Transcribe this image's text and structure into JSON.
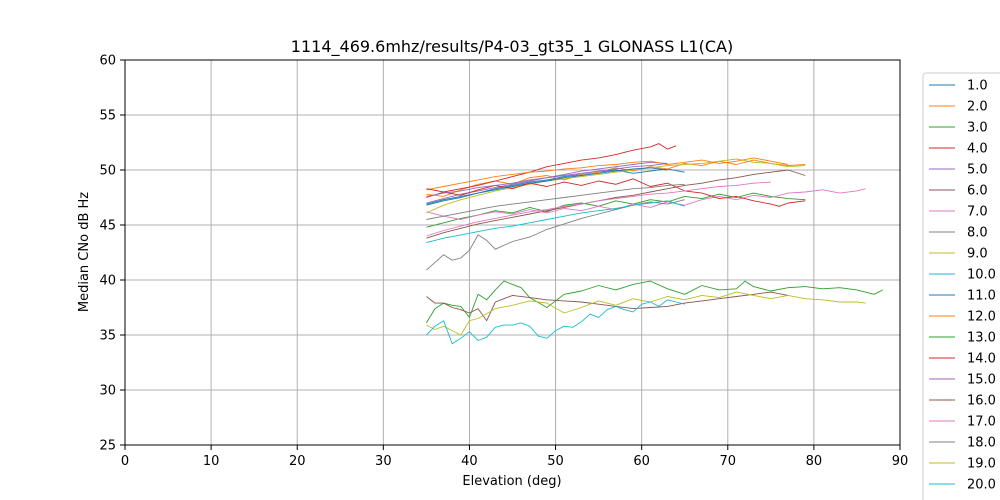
{
  "chart_data": {
    "type": "line",
    "title": "1114_469.6mhz/results/P4-03_gt35_1 GLONASS L1(CA)",
    "xlabel": "Elevation (deg)",
    "ylabel": "Median CNo dB Hz",
    "xlim": [
      0,
      90
    ],
    "ylim": [
      25,
      60
    ],
    "xticks": [
      0,
      10,
      20,
      30,
      40,
      50,
      60,
      70,
      80,
      90
    ],
    "yticks": [
      25,
      30,
      35,
      40,
      45,
      50,
      55,
      60
    ],
    "grid": true,
    "legend_position": "outside-right",
    "series": [
      {
        "name": "1.0",
        "color": "#1f77b4",
        "x": [
          35,
          37,
          39,
          41,
          43,
          45,
          47,
          49,
          51,
          53,
          55,
          57,
          59,
          61,
          63,
          65
        ],
        "y": [
          46.8,
          47.2,
          47.5,
          47.9,
          48.3,
          48.6,
          48.9,
          49.1,
          49.4,
          49.6,
          49.8,
          50.0,
          49.7,
          49.9,
          50.1,
          49.8
        ]
      },
      {
        "name": "2.0",
        "color": "#ff7f0e",
        "x": [
          35,
          37,
          39,
          41,
          43,
          45,
          47,
          49,
          51,
          53,
          55,
          57,
          59,
          61,
          63,
          65,
          67,
          69,
          71,
          73,
          75,
          77,
          79
        ],
        "y": [
          47.8,
          47.6,
          48.2,
          48.7,
          49.0,
          48.7,
          49.3,
          49.5,
          49.1,
          49.6,
          49.8,
          50.2,
          49.9,
          50.3,
          50.1,
          50.6,
          50.4,
          50.8,
          50.5,
          50.9,
          50.6,
          50.4,
          50.5
        ]
      },
      {
        "name": "3.0",
        "color": "#2ca02c",
        "x": [
          35,
          37,
          39,
          41,
          43,
          45,
          47,
          49,
          51,
          53,
          55,
          57,
          59,
          61,
          63,
          65,
          67,
          69,
          71,
          73,
          75,
          77,
          79
        ],
        "y": [
          44.8,
          45.2,
          45.6,
          45.9,
          46.3,
          46.1,
          46.6,
          46.2,
          46.8,
          47.0,
          46.7,
          47.2,
          46.9,
          47.3,
          47.1,
          47.6,
          47.4,
          47.8,
          47.5,
          47.9,
          47.6,
          47.4,
          47.3
        ]
      },
      {
        "name": "4.0",
        "color": "#d62728",
        "x": [
          35,
          37,
          39,
          41,
          43,
          45,
          47,
          49,
          51,
          53,
          55,
          57,
          59,
          61,
          62,
          63,
          64
        ],
        "y": [
          47.5,
          48.0,
          48.3,
          48.6,
          49.0,
          49.4,
          49.8,
          50.3,
          50.6,
          50.9,
          51.1,
          51.4,
          51.8,
          52.1,
          52.4,
          51.9,
          52.2
        ]
      },
      {
        "name": "5.0",
        "color": "#9467bd",
        "x": [
          35,
          37,
          39,
          41,
          43,
          45,
          47,
          49,
          51,
          53,
          55,
          57,
          59,
          61,
          63
        ],
        "y": [
          47.0,
          47.4,
          47.8,
          48.1,
          48.4,
          48.7,
          49.0,
          49.3,
          49.6,
          49.9,
          50.1,
          50.3,
          50.5,
          50.7,
          50.6
        ]
      },
      {
        "name": "6.0",
        "color": "#8c564b",
        "x": [
          35,
          37,
          39,
          41,
          43,
          45,
          47,
          49,
          51,
          53,
          55,
          57,
          59,
          61,
          63,
          65,
          67,
          69,
          71,
          73,
          75,
          77,
          79
        ],
        "y": [
          43.8,
          44.3,
          44.7,
          45.1,
          45.4,
          45.7,
          46.0,
          46.3,
          46.6,
          46.9,
          47.2,
          47.5,
          47.7,
          48.0,
          48.3,
          48.6,
          48.8,
          49.1,
          49.3,
          49.6,
          49.8,
          50.0,
          49.5
        ]
      },
      {
        "name": "7.0",
        "color": "#e377c2",
        "x": [
          35,
          37,
          39,
          41,
          43,
          45,
          47,
          49,
          51,
          53,
          55,
          57,
          59,
          61,
          63,
          65,
          67,
          69,
          71,
          73,
          75,
          77,
          79,
          81,
          83,
          85,
          86
        ],
        "y": [
          46.2,
          45.8,
          45.5,
          45.9,
          46.2,
          46.0,
          46.4,
          46.1,
          46.5,
          46.3,
          46.7,
          46.4,
          46.9,
          46.6,
          47.1,
          46.8,
          47.3,
          47.6,
          47.3,
          47.7,
          47.5,
          47.9,
          48.0,
          48.2,
          47.9,
          48.1,
          48.3
        ]
      },
      {
        "name": "8.0",
        "color": "#7f7f7f",
        "x": [
          35,
          36,
          37,
          38,
          39,
          40,
          41,
          42,
          43,
          45,
          47,
          49,
          51,
          53,
          55,
          57,
          59,
          61,
          63,
          65
        ],
        "y": [
          40.9,
          41.6,
          42.3,
          41.8,
          42.0,
          42.7,
          44.1,
          43.6,
          42.8,
          43.5,
          43.9,
          44.6,
          45.1,
          45.6,
          46.0,
          46.4,
          46.8,
          47.1,
          46.9,
          47.3
        ]
      },
      {
        "name": "9.0",
        "color": "#bcbd22",
        "x": [
          35,
          37,
          39,
          41,
          43,
          45,
          47,
          49,
          51,
          53,
          55,
          57,
          59,
          61,
          63,
          65,
          67,
          69,
          71,
          73,
          75,
          77,
          79
        ],
        "y": [
          46.1,
          46.8,
          47.3,
          47.7,
          48.1,
          48.4,
          48.7,
          49.0,
          49.2,
          49.4,
          49.6,
          49.8,
          50.0,
          50.2,
          50.4,
          50.5,
          50.6,
          50.8,
          51.0,
          50.7,
          50.6,
          50.3,
          50.4
        ]
      },
      {
        "name": "10.0",
        "color": "#17becf",
        "x": [
          35,
          37,
          39,
          41,
          43,
          45,
          47,
          49,
          51,
          53,
          55,
          57,
          59,
          61,
          63,
          65
        ],
        "y": [
          43.4,
          43.8,
          44.1,
          44.4,
          44.7,
          44.9,
          45.2,
          45.5,
          45.8,
          46.1,
          46.3,
          46.5,
          46.8,
          47.0,
          47.2,
          46.7
        ]
      },
      {
        "name": "11.0",
        "color": "#1f77b4",
        "x": [
          35,
          37,
          39,
          41,
          43,
          45,
          47,
          49,
          51,
          53,
          55,
          57,
          59,
          61,
          63
        ],
        "y": [
          46.9,
          47.3,
          47.6,
          47.9,
          48.2,
          48.5,
          48.8,
          49.0,
          49.3,
          49.5,
          49.7,
          49.9,
          50.1,
          50.2,
          50.0
        ]
      },
      {
        "name": "12.0",
        "color": "#ff7f0e",
        "x": [
          35,
          37,
          39,
          41,
          43,
          45,
          47,
          49,
          51,
          53,
          55,
          57,
          59,
          61,
          63,
          65,
          67,
          69,
          71,
          73,
          75,
          77
        ],
        "y": [
          48.2,
          48.5,
          48.8,
          49.1,
          49.4,
          49.6,
          49.8,
          49.9,
          50.1,
          50.2,
          50.4,
          50.5,
          50.7,
          50.8,
          50.5,
          50.7,
          50.9,
          50.6,
          50.8,
          51.1,
          50.8,
          50.5
        ]
      },
      {
        "name": "13.0",
        "color": "#2ca02c",
        "x": [
          35,
          36,
          37,
          38,
          39,
          40,
          41,
          42,
          43,
          44,
          45,
          46,
          47,
          49,
          51,
          53,
          55,
          57,
          59,
          61,
          63,
          65,
          67,
          69,
          71,
          72,
          73,
          75,
          77,
          79,
          81,
          83,
          85,
          87,
          88
        ],
        "y": [
          36.1,
          37.4,
          37.9,
          37.7,
          37.6,
          36.6,
          38.7,
          38.2,
          39.1,
          39.9,
          39.6,
          39.3,
          38.4,
          37.5,
          38.7,
          39.0,
          39.5,
          39.1,
          39.6,
          39.9,
          39.2,
          38.7,
          39.5,
          39.1,
          39.2,
          39.9,
          39.4,
          39.0,
          39.3,
          39.4,
          39.2,
          39.3,
          39.1,
          38.7,
          39.1
        ]
      },
      {
        "name": "14.0",
        "color": "#d62728",
        "x": [
          35,
          37,
          39,
          41,
          43,
          45,
          47,
          49,
          51,
          53,
          55,
          57,
          59,
          61,
          63,
          65,
          67,
          69,
          71,
          73,
          75,
          76,
          77,
          79
        ],
        "y": [
          48.3,
          48.0,
          47.7,
          48.2,
          48.6,
          48.3,
          48.8,
          48.5,
          48.9,
          48.6,
          49.0,
          48.7,
          49.2,
          48.5,
          48.8,
          48.1,
          47.9,
          47.4,
          47.6,
          47.2,
          46.9,
          46.7,
          47.0,
          47.2
        ]
      },
      {
        "name": "15.0",
        "color": "#9467bd",
        "x": [
          35,
          37,
          39,
          41,
          43,
          45,
          47,
          49,
          51,
          53,
          55,
          57,
          59,
          61,
          63
        ],
        "y": [
          47.6,
          47.9,
          48.1,
          48.4,
          48.6,
          48.8,
          49.1,
          49.3,
          49.5,
          49.7,
          49.9,
          50.1,
          50.3,
          50.4,
          50.6
        ]
      },
      {
        "name": "16.0",
        "color": "#8c564b",
        "x": [
          35,
          36,
          37,
          38,
          39,
          40,
          41,
          42,
          43,
          44,
          45,
          47,
          49,
          51,
          53,
          55,
          57,
          59,
          61,
          63,
          65,
          67,
          69,
          71,
          73,
          75,
          77
        ],
        "y": [
          38.5,
          37.9,
          37.9,
          37.5,
          37.3,
          37.0,
          37.4,
          36.3,
          38.0,
          38.3,
          38.6,
          38.4,
          38.2,
          38.1,
          38.0,
          37.8,
          37.6,
          37.4,
          37.5,
          37.6,
          37.9,
          38.1,
          38.3,
          38.5,
          38.7,
          38.9,
          38.6
        ]
      },
      {
        "name": "17.0",
        "color": "#e377c2",
        "x": [
          35,
          37,
          39,
          41,
          43,
          45,
          47,
          49,
          51,
          53,
          55,
          57,
          59,
          61,
          63,
          65,
          67,
          69,
          71,
          73,
          75
        ],
        "y": [
          44.0,
          44.5,
          44.9,
          45.3,
          45.6,
          45.9,
          46.2,
          46.4,
          46.7,
          46.9,
          47.2,
          47.4,
          47.6,
          47.8,
          47.9,
          48.1,
          48.3,
          48.5,
          48.6,
          48.8,
          48.9
        ]
      },
      {
        "name": "18.0",
        "color": "#7f7f7f",
        "x": [
          35,
          37,
          39,
          41,
          43,
          45,
          47,
          49,
          51,
          53,
          55,
          57,
          59,
          61,
          63,
          65
        ],
        "y": [
          45.5,
          45.8,
          46.1,
          46.4,
          46.7,
          46.9,
          47.1,
          47.3,
          47.5,
          47.7,
          47.9,
          48.1,
          48.3,
          48.4,
          48.6,
          48.7
        ]
      },
      {
        "name": "19.0",
        "color": "#bcbd22",
        "x": [
          35,
          36,
          37,
          38,
          39,
          40,
          41,
          43,
          45,
          47,
          49,
          51,
          53,
          55,
          57,
          59,
          61,
          63,
          65,
          67,
          69,
          71,
          73,
          75,
          77,
          79,
          81,
          83,
          85,
          86
        ],
        "y": [
          35.9,
          35.5,
          35.8,
          35.4,
          35.0,
          36.3,
          36.5,
          37.4,
          37.7,
          38.1,
          37.9,
          37.0,
          37.5,
          38.1,
          37.7,
          38.3,
          38.0,
          38.5,
          38.2,
          38.6,
          38.4,
          38.9,
          38.6,
          38.3,
          38.6,
          38.3,
          38.2,
          38.0,
          38.0,
          37.9
        ]
      },
      {
        "name": "20.0",
        "color": "#17becf",
        "x": [
          35,
          36,
          37,
          38,
          39,
          40,
          41,
          42,
          43,
          44,
          45,
          46,
          47,
          48,
          49,
          50,
          51,
          52,
          53,
          54,
          55,
          56,
          57,
          58,
          59,
          60,
          61,
          62,
          63,
          64,
          65
        ],
        "y": [
          35.0,
          35.8,
          36.3,
          34.2,
          34.7,
          35.3,
          34.5,
          34.8,
          35.7,
          35.9,
          35.9,
          36.1,
          35.8,
          34.9,
          34.7,
          35.4,
          35.8,
          35.7,
          36.2,
          36.9,
          36.6,
          37.3,
          37.6,
          37.3,
          37.1,
          37.8,
          38.0,
          37.6,
          38.2,
          38.0,
          37.8
        ]
      }
    ]
  }
}
